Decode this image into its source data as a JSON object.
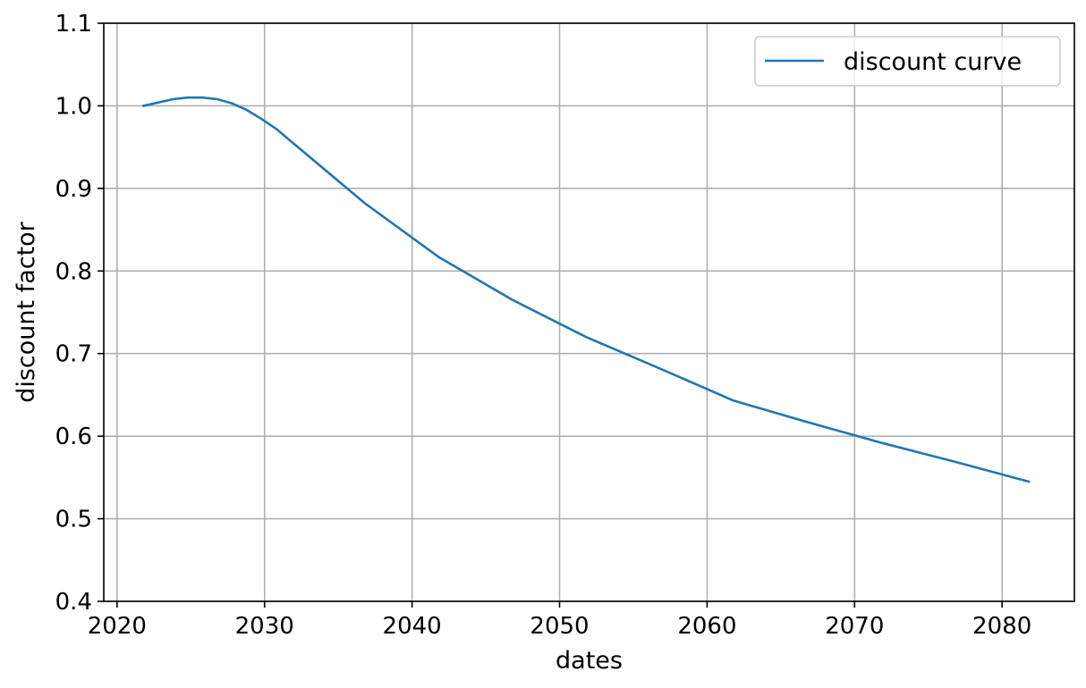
{
  "chart_data": {
    "type": "line",
    "xlabel": "dates",
    "ylabel": "discount factor",
    "xlim": [
      2019.1,
      2084.9
    ],
    "ylim": [
      0.4,
      1.1
    ],
    "grid": true,
    "legend_position": "upper-right",
    "x_ticks": [
      2020,
      2030,
      2040,
      2050,
      2060,
      2070,
      2080
    ],
    "y_ticks": [
      0.4,
      0.5,
      0.6,
      0.7,
      0.8,
      0.9,
      1.0,
      1.1
    ],
    "x_tick_labels": [
      "2020",
      "2030",
      "2040",
      "2050",
      "2060",
      "2070",
      "2080"
    ],
    "y_tick_labels": [
      "0.4",
      "0.5",
      "0.6",
      "0.7",
      "0.8",
      "0.9",
      "1.0",
      "1.1"
    ],
    "series": [
      {
        "name": "discount curve",
        "color": "#1f77b4",
        "x": [
          2021.8,
          2022.8,
          2023.8,
          2024.8,
          2025.8,
          2026.8,
          2027.8,
          2028.8,
          2029.8,
          2030.8,
          2031.8,
          2036.8,
          2041.8,
          2046.8,
          2051.8,
          2056.8,
          2061.8,
          2066.8,
          2071.8,
          2076.8,
          2081.8
        ],
        "y": [
          1.0,
          1.004,
          1.008,
          1.01,
          1.01,
          1.008,
          1.003,
          0.995,
          0.984,
          0.972,
          0.957,
          0.882,
          0.817,
          0.765,
          0.72,
          0.682,
          0.643,
          0.617,
          0.592,
          0.569,
          0.545
        ]
      }
    ]
  }
}
